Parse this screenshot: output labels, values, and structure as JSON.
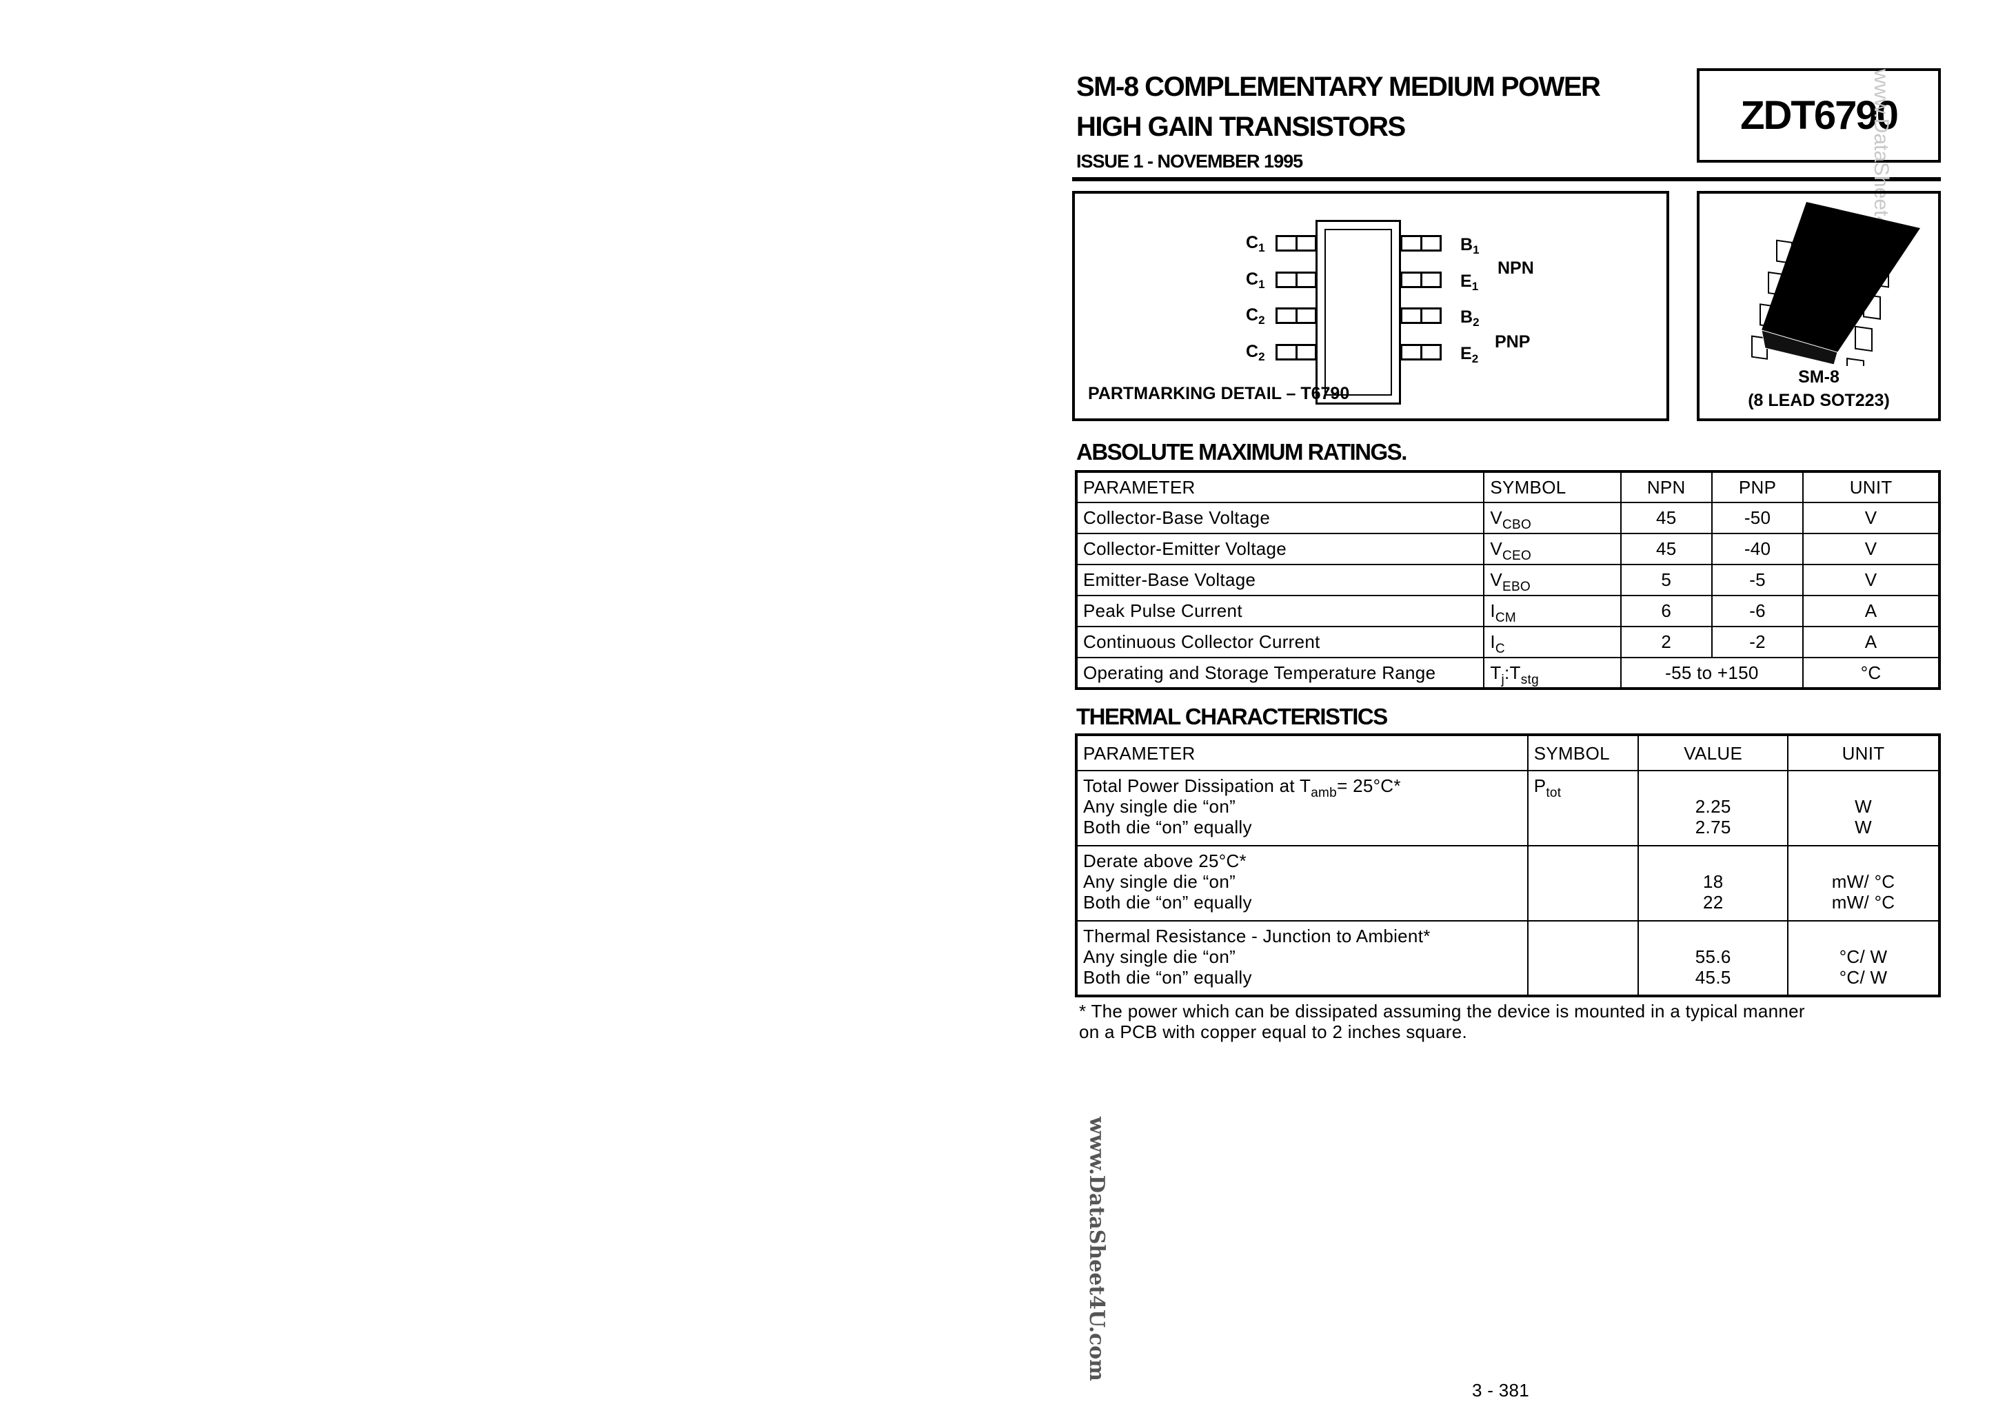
{
  "header": {
    "title_line1": "SM-8 COMPLEMENTARY MEDIUM POWER",
    "title_line2": "HIGH GAIN TRANSISTORS",
    "issue": "ISSUE 1 - NOVEMBER 1995",
    "part_number": "ZDT6790"
  },
  "pinout": {
    "left_pins": [
      {
        "base": "C",
        "sub": "1"
      },
      {
        "base": "C",
        "sub": "1"
      },
      {
        "base": "C",
        "sub": "2"
      },
      {
        "base": "C",
        "sub": "2"
      }
    ],
    "right_pins": [
      {
        "base": "B",
        "sub": "1"
      },
      {
        "base": "E",
        "sub": "1"
      },
      {
        "base": "B",
        "sub": "2"
      },
      {
        "base": "E",
        "sub": "2"
      }
    ],
    "npn_label": "NPN",
    "pnp_label": "PNP",
    "partmarking": "PARTMARKING DETAIL – T6790"
  },
  "package": {
    "name": "SM-8",
    "description": "(8 LEAD SOT223)"
  },
  "abs_max": {
    "heading": "ABSOLUTE MAXIMUM RATINGS.",
    "headers": [
      "PARAMETER",
      "SYMBOL",
      "NPN",
      "PNP",
      "UNIT"
    ],
    "rows": [
      {
        "parameter": "Collector-Base Voltage",
        "sym": "V",
        "sym_sub": "CBO",
        "npn": "45",
        "pnp": "-50",
        "unit": "V"
      },
      {
        "parameter": "Collector-Emitter Voltage",
        "sym": "V",
        "sym_sub": "CEO",
        "npn": "45",
        "pnp": "-40",
        "unit": "V"
      },
      {
        "parameter": "Emitter-Base Voltage",
        "sym": "V",
        "sym_sub": "EBO",
        "npn": "5",
        "pnp": "-5",
        "unit": "V"
      },
      {
        "parameter": "Peak Pulse Current",
        "sym": "I",
        "sym_sub": "CM",
        "npn": "6",
        "pnp": "-6",
        "unit": "A"
      },
      {
        "parameter": "Continuous Collector Current",
        "sym": "I",
        "sym_sub": "C",
        "npn": "2",
        "pnp": "-2",
        "unit": "A"
      }
    ],
    "temp_row": {
      "parameter": "Operating and Storage Temperature Range",
      "sym": "T",
      "sym_sub1": "j",
      "sym_mid": ":T",
      "sym_sub2": "stg",
      "value": "-55 to +150",
      "unit": "°C"
    }
  },
  "thermal": {
    "heading": "THERMAL CHARACTERISTICS",
    "headers": [
      "PARAMETER",
      "SYMBOL",
      "VALUE",
      "UNIT"
    ],
    "rows": [
      {
        "title_pre": "Total Power Dissipation at T",
        "title_sub": "amb",
        "title_post": "= 25°C*",
        "line2": "Any single die “on”",
        "line3": "Both die “on” equally",
        "sym": "P",
        "sym_sub": "tot",
        "value1": "2.25",
        "value2": "2.75",
        "unit1": "W",
        "unit2": "W"
      },
      {
        "title_pre": "Derate above 25°C*",
        "line2": "Any single die “on”",
        "line3": "Both die “on” equally",
        "value1": "18",
        "value2": "22",
        "unit1": "mW/ °C",
        "unit2": "mW/ °C"
      },
      {
        "title_pre": "Thermal Resistance - Junction to Ambient*",
        "line2": "Any single die “on”",
        "line3": "Both die “on” equally",
        "value1": "55.6",
        "value2": "45.5",
        "unit1": "°C/ W",
        "unit2": "°C/ W"
      }
    ],
    "footnote_line1": "* The power which can be dissipated assuming the device is mounted in a typical manner",
    "footnote_line2": "on a PCB with copper equal to 2 inches square."
  },
  "watermark": "www.DataSheet4U.com",
  "page_number": "3 - 381"
}
